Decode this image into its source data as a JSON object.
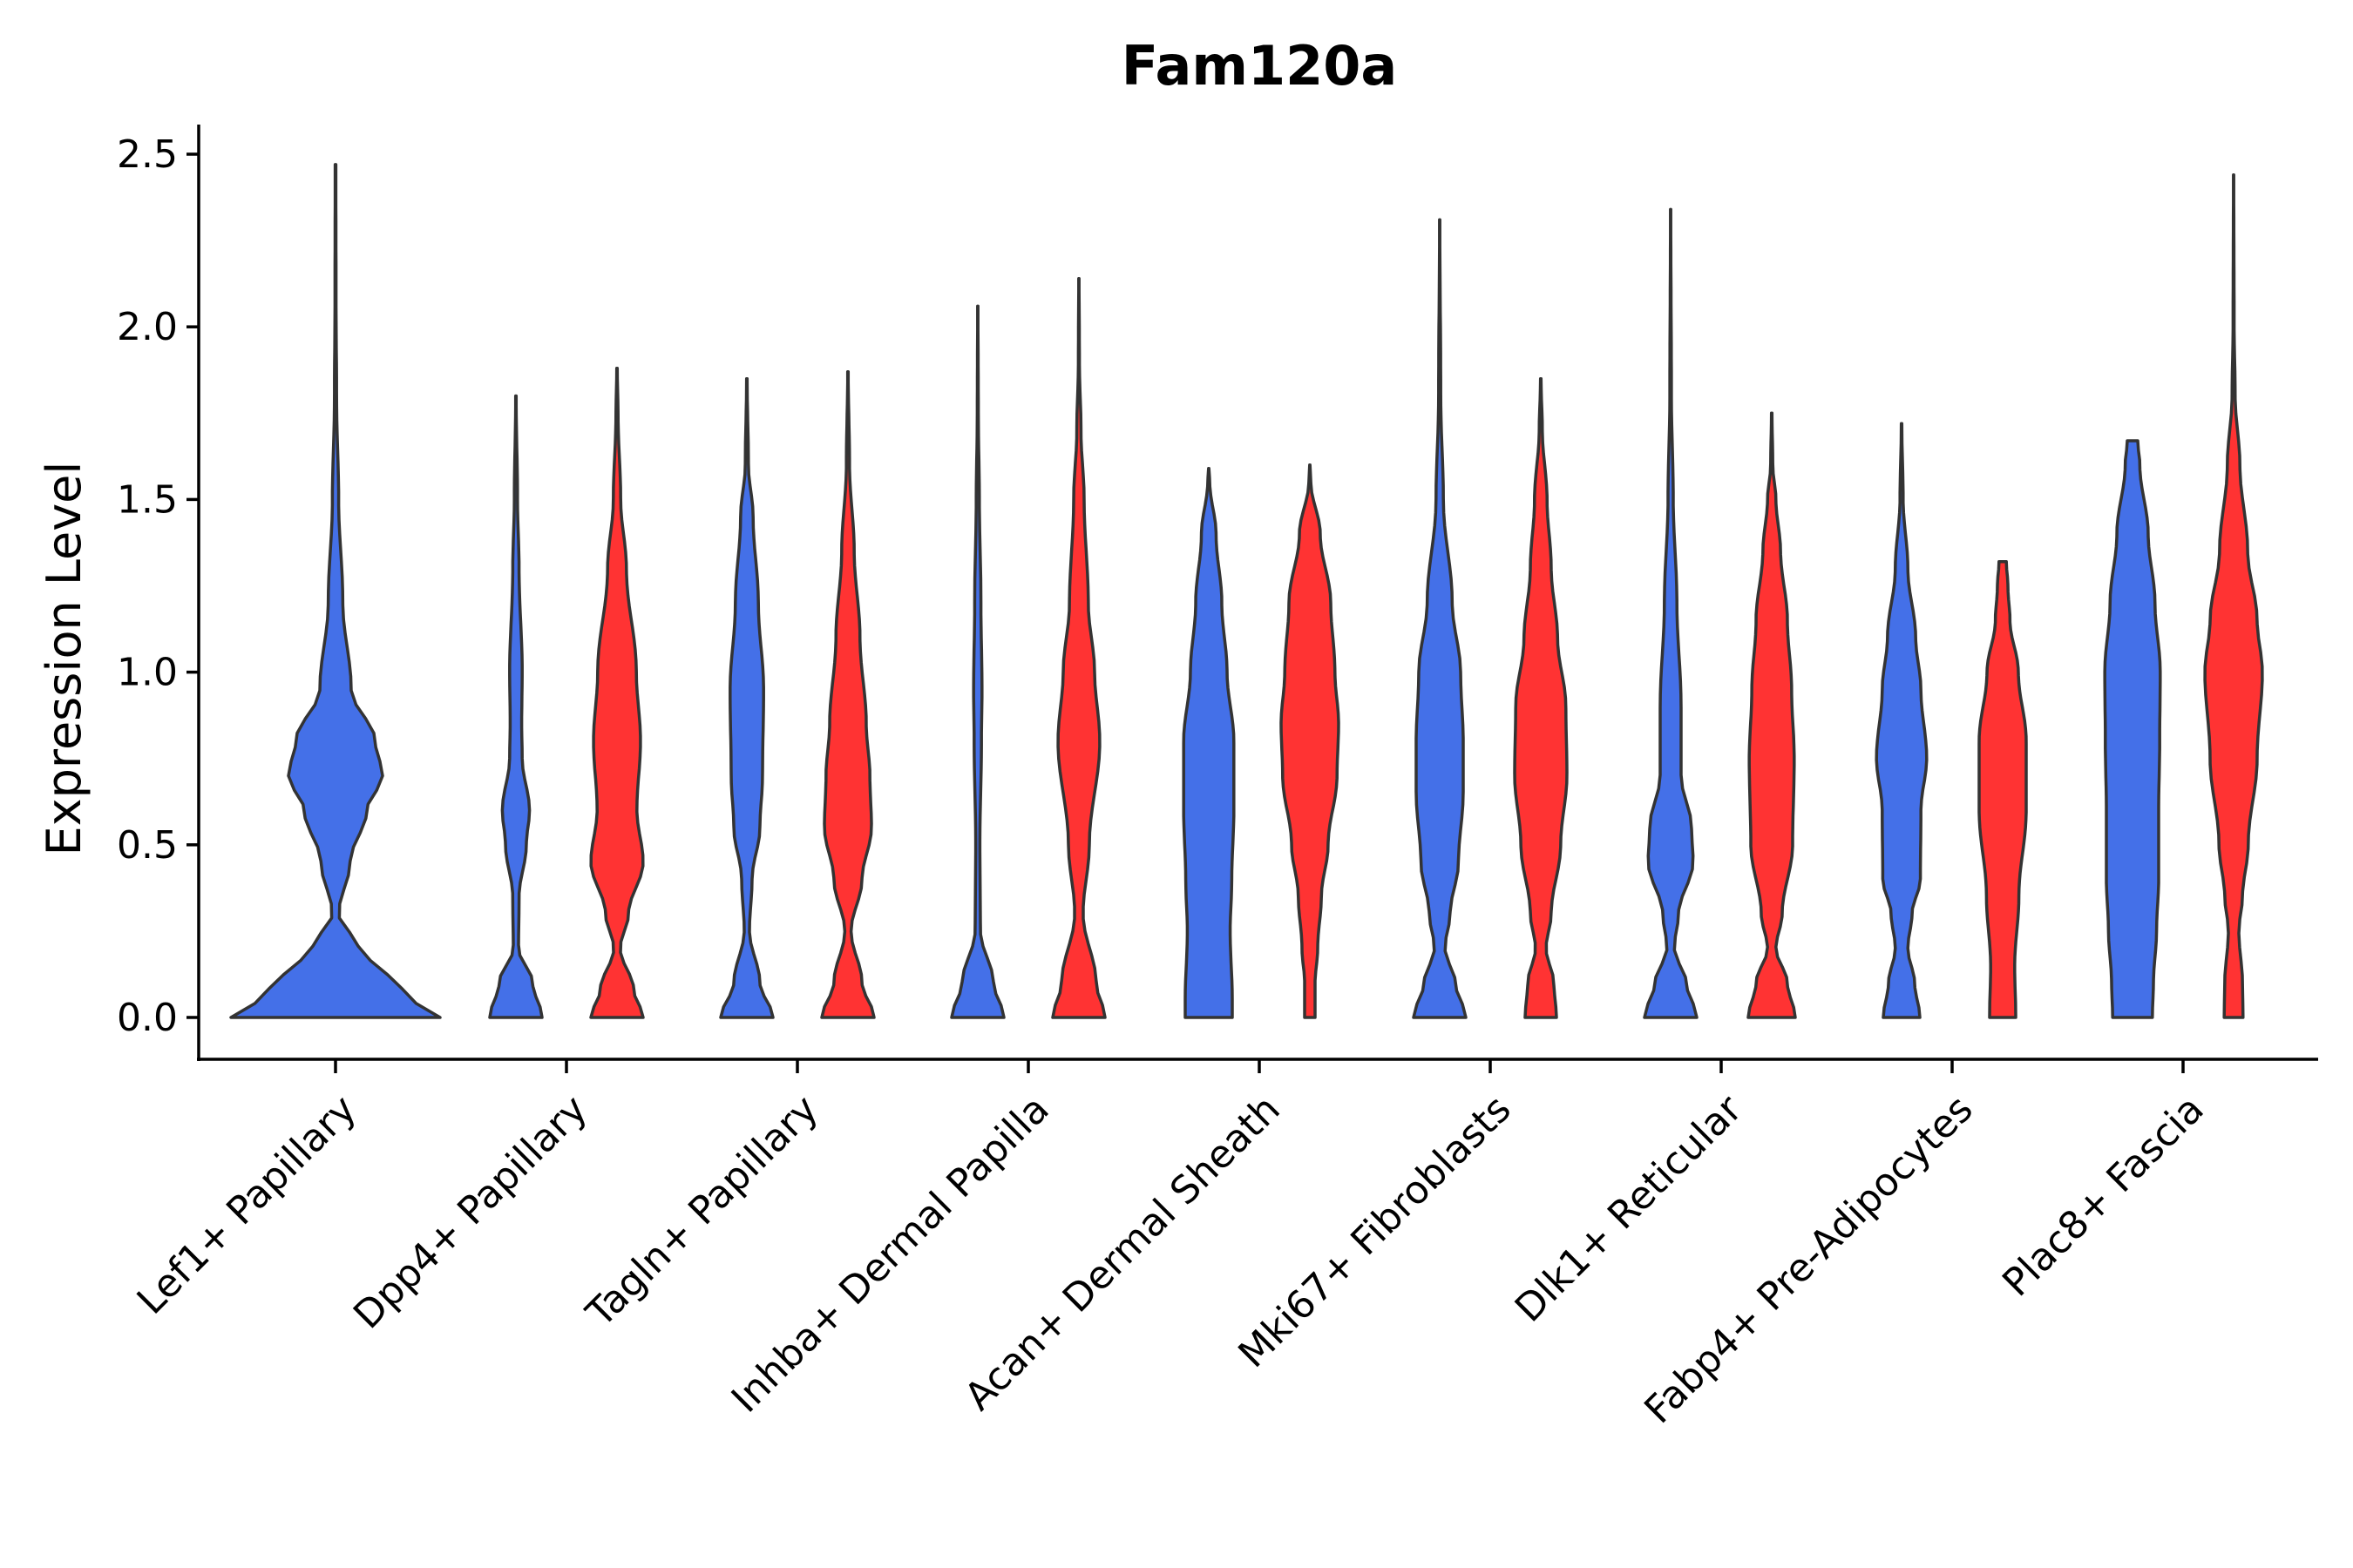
{
  "chart_data": {
    "type": "violin",
    "title": "Fam120a",
    "xlabel": "",
    "ylabel": "Expression Level",
    "ylim": [
      -0.13,
      2.6
    ],
    "yticks": [
      "0.0",
      "0.5",
      "1.0",
      "1.5",
      "2.0",
      "2.5"
    ],
    "ytick_values": [
      0,
      0.5,
      1.0,
      1.5,
      2.0,
      2.5
    ],
    "categories": [
      "Lef1+ Papillary",
      "Dpp4+ Papillary",
      "Tagln+ Papillary",
      "Inhba+ Dermal Papilla",
      "Acan+ Dermal Sheath",
      "Mki67+ Fibroblasts",
      "Dlk1+ Reticular",
      "Fabp4+ Pre-Adipocytes",
      "Plac8+ Fascia"
    ],
    "colors": {
      "blue": "#4470E8",
      "red": "#FF3333"
    },
    "violins": [
      {
        "category": "Lef1+ Papillary",
        "color": "blue",
        "max": 2.47,
        "profile": [
          [
            0.0,
            1.0
          ],
          [
            0.05,
            0.75
          ],
          [
            0.12,
            0.5
          ],
          [
            0.2,
            0.22
          ],
          [
            0.3,
            0.03
          ],
          [
            0.45,
            0.14
          ],
          [
            0.6,
            0.3
          ],
          [
            0.7,
            0.45
          ],
          [
            0.8,
            0.38
          ],
          [
            0.95,
            0.15
          ],
          [
            1.2,
            0.07
          ],
          [
            1.5,
            0.03
          ],
          [
            1.8,
            0.01
          ],
          [
            2.1,
            0.005
          ],
          [
            2.47,
            0.003
          ]
        ]
      },
      {
        "category": "Dpp4+ Papillary",
        "color": "blue",
        "max": 1.8,
        "profile": [
          [
            0.0,
            0.5
          ],
          [
            0.1,
            0.32
          ],
          [
            0.2,
            0.05
          ],
          [
            0.35,
            0.06
          ],
          [
            0.5,
            0.2
          ],
          [
            0.6,
            0.26
          ],
          [
            0.75,
            0.12
          ],
          [
            0.85,
            0.11
          ],
          [
            1.0,
            0.12
          ],
          [
            1.3,
            0.06
          ],
          [
            1.5,
            0.03
          ],
          [
            1.8,
            0.005
          ]
        ]
      },
      {
        "category": "Dpp4+ Papillary",
        "color": "red",
        "max": 1.88,
        "profile": [
          [
            0.0,
            0.5
          ],
          [
            0.08,
            0.32
          ],
          [
            0.2,
            0.06
          ],
          [
            0.3,
            0.22
          ],
          [
            0.45,
            0.5
          ],
          [
            0.6,
            0.38
          ],
          [
            0.8,
            0.45
          ],
          [
            1.0,
            0.37
          ],
          [
            1.3,
            0.18
          ],
          [
            1.5,
            0.07
          ],
          [
            1.75,
            0.02
          ],
          [
            1.88,
            0.005
          ]
        ]
      },
      {
        "category": "Tagln+ Papillary",
        "color": "blue",
        "max": 1.85,
        "profile": [
          [
            0.0,
            0.5
          ],
          [
            0.1,
            0.25
          ],
          [
            0.25,
            0.05
          ],
          [
            0.4,
            0.1
          ],
          [
            0.55,
            0.25
          ],
          [
            0.7,
            0.3
          ],
          [
            0.95,
            0.32
          ],
          [
            1.2,
            0.22
          ],
          [
            1.45,
            0.12
          ],
          [
            1.6,
            0.03
          ],
          [
            1.85,
            0.005
          ]
        ]
      },
      {
        "category": "Tagln+ Papillary",
        "color": "red",
        "max": 1.87,
        "profile": [
          [
            0.0,
            0.5
          ],
          [
            0.1,
            0.27
          ],
          [
            0.25,
            0.06
          ],
          [
            0.4,
            0.27
          ],
          [
            0.55,
            0.45
          ],
          [
            0.7,
            0.42
          ],
          [
            0.85,
            0.35
          ],
          [
            1.1,
            0.23
          ],
          [
            1.35,
            0.12
          ],
          [
            1.6,
            0.03
          ],
          [
            1.87,
            0.005
          ]
        ]
      },
      {
        "category": "Inhba+ Dermal Papilla",
        "color": "blue",
        "max": 2.06,
        "profile": [
          [
            0.0,
            0.5
          ],
          [
            0.1,
            0.3
          ],
          [
            0.25,
            0.05
          ],
          [
            0.5,
            0.04
          ],
          [
            0.8,
            0.07
          ],
          [
            0.95,
            0.08
          ],
          [
            1.2,
            0.06
          ],
          [
            1.5,
            0.03
          ],
          [
            1.75,
            0.01
          ],
          [
            2.06,
            0.003
          ]
        ]
      },
      {
        "category": "Inhba+ Dermal Papilla",
        "color": "red",
        "max": 2.14,
        "profile": [
          [
            0.0,
            0.5
          ],
          [
            0.1,
            0.33
          ],
          [
            0.3,
            0.08
          ],
          [
            0.5,
            0.2
          ],
          [
            0.8,
            0.4
          ],
          [
            1.0,
            0.3
          ],
          [
            1.2,
            0.18
          ],
          [
            1.5,
            0.1
          ],
          [
            1.7,
            0.04
          ],
          [
            1.9,
            0.01
          ],
          [
            2.14,
            0.003
          ]
        ]
      },
      {
        "category": "Acan+ Dermal Sheath",
        "color": "blue",
        "max": 1.59,
        "profile": [
          [
            0.0,
            0.45
          ],
          [
            0.05,
            0.45
          ],
          [
            0.25,
            0.41
          ],
          [
            0.4,
            0.44
          ],
          [
            0.6,
            0.48
          ],
          [
            0.8,
            0.48
          ],
          [
            1.0,
            0.35
          ],
          [
            1.2,
            0.25
          ],
          [
            1.4,
            0.14
          ],
          [
            1.55,
            0.02
          ],
          [
            1.59,
            0.003
          ]
        ]
      },
      {
        "category": "Acan+ Dermal Sheath",
        "color": "red",
        "max": 1.6,
        "profile": [
          [
            0.0,
            0.1
          ],
          [
            0.1,
            0.1
          ],
          [
            0.2,
            0.15
          ],
          [
            0.35,
            0.22
          ],
          [
            0.5,
            0.35
          ],
          [
            0.7,
            0.52
          ],
          [
            0.85,
            0.55
          ],
          [
            1.0,
            0.48
          ],
          [
            1.2,
            0.4
          ],
          [
            1.4,
            0.2
          ],
          [
            1.55,
            0.02
          ],
          [
            1.6,
            0.003
          ]
        ]
      },
      {
        "category": "Mki67+ Fibroblasts",
        "color": "blue",
        "max": 2.31,
        "profile": [
          [
            0.0,
            0.5
          ],
          [
            0.1,
            0.3
          ],
          [
            0.2,
            0.1
          ],
          [
            0.3,
            0.2
          ],
          [
            0.45,
            0.36
          ],
          [
            0.65,
            0.45
          ],
          [
            0.8,
            0.45
          ],
          [
            1.0,
            0.4
          ],
          [
            1.2,
            0.24
          ],
          [
            1.5,
            0.07
          ],
          [
            1.8,
            0.02
          ],
          [
            2.31,
            0.003
          ]
        ]
      },
      {
        "category": "Mki67+ Fibroblasts",
        "color": "red",
        "max": 1.85,
        "profile": [
          [
            0.0,
            0.3
          ],
          [
            0.1,
            0.25
          ],
          [
            0.2,
            0.1
          ],
          [
            0.3,
            0.2
          ],
          [
            0.5,
            0.38
          ],
          [
            0.7,
            0.5
          ],
          [
            0.9,
            0.48
          ],
          [
            1.1,
            0.32
          ],
          [
            1.3,
            0.2
          ],
          [
            1.5,
            0.12
          ],
          [
            1.7,
            0.03
          ],
          [
            1.85,
            0.005
          ]
        ]
      },
      {
        "category": "Dlk1+ Reticular",
        "color": "blue",
        "max": 2.34,
        "profile": [
          [
            0.0,
            0.5
          ],
          [
            0.1,
            0.3
          ],
          [
            0.2,
            0.07
          ],
          [
            0.3,
            0.15
          ],
          [
            0.45,
            0.43
          ],
          [
            0.55,
            0.4
          ],
          [
            0.7,
            0.2
          ],
          [
            0.9,
            0.2
          ],
          [
            1.2,
            0.12
          ],
          [
            1.5,
            0.05
          ],
          [
            1.8,
            0.015
          ],
          [
            2.34,
            0.003
          ]
        ]
      },
      {
        "category": "Dlk1+ Reticular",
        "color": "red",
        "max": 1.75,
        "profile": [
          [
            0.0,
            0.45
          ],
          [
            0.1,
            0.3
          ],
          [
            0.2,
            0.08
          ],
          [
            0.3,
            0.2
          ],
          [
            0.5,
            0.4
          ],
          [
            0.75,
            0.43
          ],
          [
            0.95,
            0.38
          ],
          [
            1.15,
            0.3
          ],
          [
            1.35,
            0.17
          ],
          [
            1.5,
            0.08
          ],
          [
            1.6,
            0.02
          ],
          [
            1.75,
            0.005
          ]
        ]
      },
      {
        "category": "Fabp4+ Pre-Adipocytes",
        "color": "blue",
        "max": 1.72,
        "profile": [
          [
            0.0,
            0.35
          ],
          [
            0.1,
            0.25
          ],
          [
            0.2,
            0.12
          ],
          [
            0.3,
            0.2
          ],
          [
            0.4,
            0.36
          ],
          [
            0.6,
            0.37
          ],
          [
            0.75,
            0.48
          ],
          [
            0.95,
            0.37
          ],
          [
            1.1,
            0.27
          ],
          [
            1.3,
            0.12
          ],
          [
            1.5,
            0.03
          ],
          [
            1.72,
            0.005
          ]
        ]
      },
      {
        "category": "Fabp4+ Pre-Adipocytes",
        "color": "red",
        "max": 1.32,
        "profile": [
          [
            0.0,
            0.25
          ],
          [
            0.15,
            0.23
          ],
          [
            0.35,
            0.31
          ],
          [
            0.6,
            0.45
          ],
          [
            0.8,
            0.45
          ],
          [
            1.0,
            0.3
          ],
          [
            1.15,
            0.14
          ],
          [
            1.25,
            0.1
          ],
          [
            1.32,
            0.07
          ]
        ]
      },
      {
        "category": "Plac8+ Fascia",
        "color": "blue",
        "max": 1.67,
        "profile": [
          [
            0.0,
            0.38
          ],
          [
            0.1,
            0.4
          ],
          [
            0.25,
            0.46
          ],
          [
            0.4,
            0.5
          ],
          [
            0.6,
            0.5
          ],
          [
            0.8,
            0.52
          ],
          [
            1.0,
            0.53
          ],
          [
            1.2,
            0.43
          ],
          [
            1.4,
            0.3
          ],
          [
            1.6,
            0.14
          ],
          [
            1.67,
            0.1
          ]
        ]
      },
      {
        "category": "Plac8+ Fascia",
        "color": "red",
        "max": 2.44,
        "profile": [
          [
            0.0,
            0.18
          ],
          [
            0.1,
            0.17
          ],
          [
            0.25,
            0.1
          ],
          [
            0.35,
            0.17
          ],
          [
            0.5,
            0.28
          ],
          [
            0.75,
            0.45
          ],
          [
            1.0,
            0.55
          ],
          [
            1.15,
            0.45
          ],
          [
            1.35,
            0.27
          ],
          [
            1.6,
            0.12
          ],
          [
            1.8,
            0.03
          ],
          [
            2.0,
            0.01
          ],
          [
            2.44,
            0.003
          ]
        ]
      }
    ]
  }
}
